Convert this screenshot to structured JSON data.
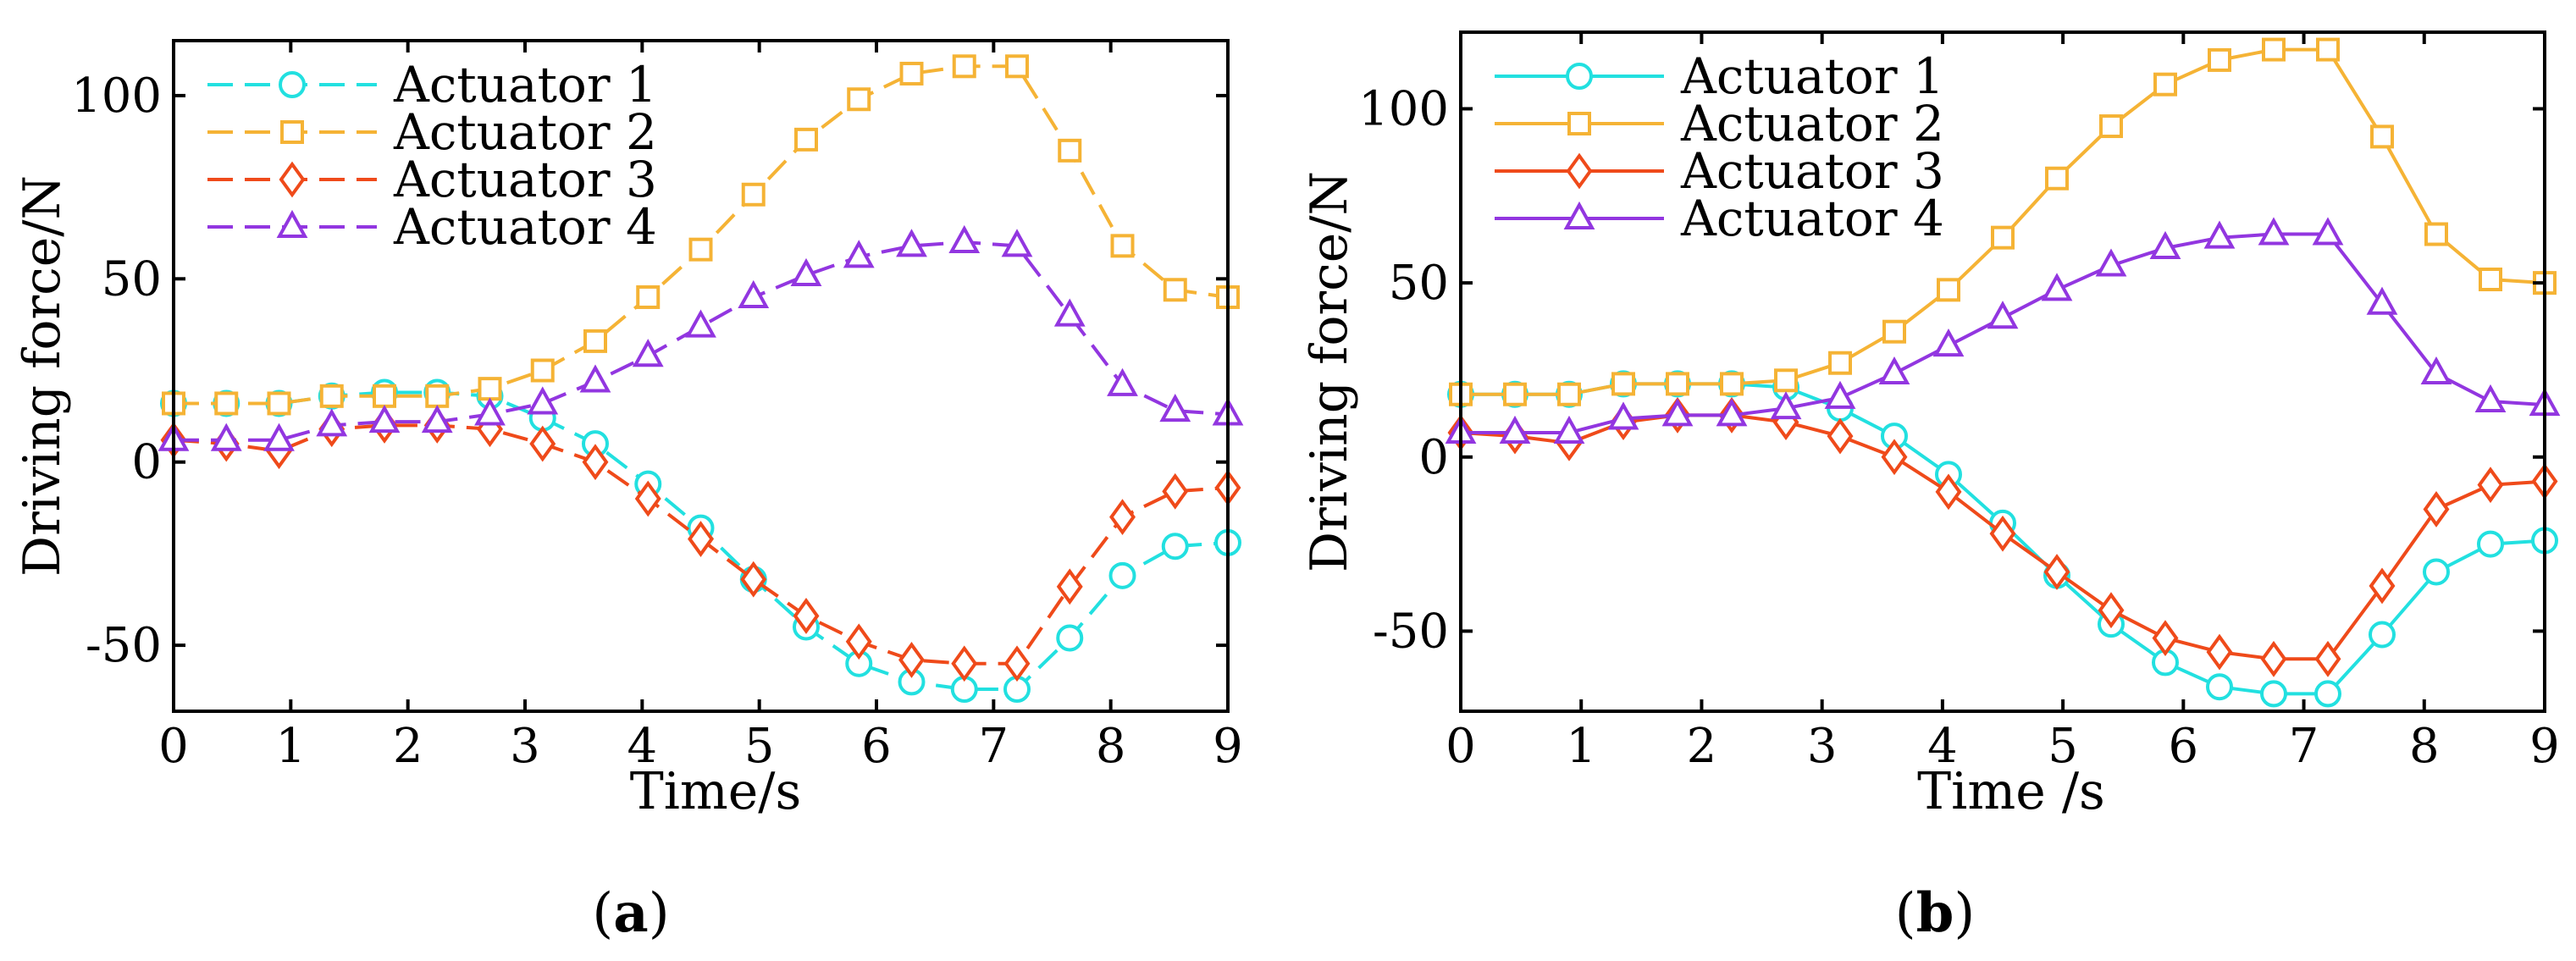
{
  "chart_data": [
    {
      "type": "line",
      "panel_label": "a",
      "title": "",
      "xlabel": "Time/s",
      "ylabel": "Driving force/N",
      "xlim": [
        0,
        9
      ],
      "ylim": [
        -68,
        115
      ],
      "xticks": [
        0,
        1,
        2,
        3,
        4,
        5,
        6,
        7,
        8,
        9
      ],
      "yticks": [
        -50,
        0,
        50,
        100
      ],
      "legend_position": "top-left",
      "line_style": "dashed",
      "x": [
        0,
        0.45,
        0.9,
        1.35,
        1.8,
        2.25,
        2.7,
        3.15,
        3.6,
        4.05,
        4.5,
        4.95,
        5.4,
        5.85,
        6.3,
        6.75,
        7.2,
        7.65,
        8.1,
        8.55,
        9.0
      ],
      "series": [
        {
          "name": "Actuator 1",
          "color": "#22e0e0",
          "marker": "circle",
          "values": [
            16,
            16,
            16,
            18,
            19,
            19,
            18,
            12,
            5,
            -6,
            -18,
            -32,
            -45,
            -55,
            -60,
            -62,
            -62,
            -48,
            -31,
            -23,
            -22
          ]
        },
        {
          "name": "Actuator 2",
          "color": "#f5b335",
          "marker": "square",
          "values": [
            16,
            16,
            16,
            18,
            18,
            18,
            20,
            25,
            33,
            45,
            58,
            73,
            88,
            99,
            106,
            108,
            108,
            85,
            59,
            47,
            45
          ]
        },
        {
          "name": "Actuator 3",
          "color": "#ef4a1a",
          "marker": "diamond",
          "values": [
            6,
            5,
            3,
            9,
            10,
            10,
            9,
            5,
            0,
            -10,
            -21,
            -32,
            -42,
            -49,
            -54,
            -55,
            -55,
            -34,
            -15,
            -8,
            -7
          ]
        },
        {
          "name": "Actuator 4",
          "color": "#9236e0",
          "marker": "triangle",
          "values": [
            6,
            6,
            6,
            10,
            11,
            11,
            13,
            16,
            22,
            29,
            37,
            45,
            51,
            56,
            59,
            60,
            59,
            40,
            21,
            14,
            13
          ]
        }
      ]
    },
    {
      "type": "line",
      "panel_label": "b",
      "title": "",
      "xlabel": "Time /s",
      "ylabel": "Driving force/N",
      "xlim": [
        0,
        9
      ],
      "ylim": [
        -73,
        122
      ],
      "xticks": [
        0,
        1,
        2,
        3,
        4,
        5,
        6,
        7,
        8,
        9
      ],
      "yticks": [
        -50,
        0,
        50,
        100
      ],
      "legend_position": "top-left",
      "line_style": "solid",
      "x": [
        0,
        0.45,
        0.9,
        1.35,
        1.8,
        2.25,
        2.7,
        3.15,
        3.6,
        4.05,
        4.5,
        4.95,
        5.4,
        5.85,
        6.3,
        6.75,
        7.2,
        7.65,
        8.1,
        8.55,
        9.0
      ],
      "series": [
        {
          "name": "Actuator 1",
          "color": "#22e0e0",
          "marker": "circle",
          "values": [
            18,
            18,
            18,
            21,
            21,
            21,
            20,
            14,
            6,
            -5,
            -19,
            -34,
            -48,
            -59,
            -66,
            -68,
            -68,
            -51,
            -33,
            -25,
            -24
          ]
        },
        {
          "name": "Actuator 2",
          "color": "#f5b335",
          "marker": "square",
          "values": [
            18,
            18,
            18,
            21,
            21,
            21,
            22,
            27,
            36,
            48,
            63,
            80,
            95,
            107,
            114,
            117,
            117,
            92,
            64,
            51,
            50
          ]
        },
        {
          "name": "Actuator 3",
          "color": "#ef4a1a",
          "marker": "diamond",
          "values": [
            7,
            6,
            4,
            10,
            12,
            12,
            10,
            6,
            0,
            -10,
            -22,
            -33,
            -44,
            -52,
            -56,
            -58,
            -58,
            -37,
            -15,
            -8,
            -7
          ]
        },
        {
          "name": "Actuator 4",
          "color": "#9236e0",
          "marker": "triangle",
          "values": [
            7,
            7,
            7,
            11,
            12,
            12,
            14,
            17,
            24,
            32,
            40,
            48,
            55,
            60,
            63,
            64,
            64,
            44,
            24,
            16,
            15
          ]
        }
      ]
    }
  ]
}
